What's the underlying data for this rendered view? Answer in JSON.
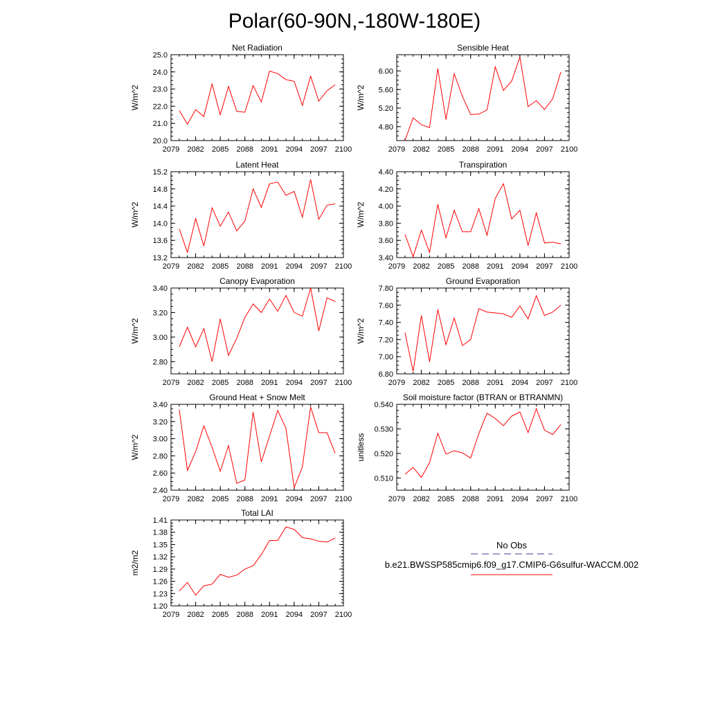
{
  "title": "Polar(60-90N,-180W-180E)",
  "series_color": "#ff0000",
  "obs_color": "#3b3b9e",
  "legend": {
    "obs_label": "No Obs",
    "model_label": "b.e21.BWSSP585cmip6.f09_g17.CMIP6-G6sulfur-WACCM.002"
  },
  "chart_data": [
    {
      "type": "line",
      "title": "Net Radiation",
      "ylabel": "W/m^2",
      "xlim": [
        2079,
        2100
      ],
      "ylim": [
        20.0,
        25.0
      ],
      "xticks": [
        "2079",
        "2082",
        "2085",
        "2088",
        "2091",
        "2094",
        "2097",
        "2100"
      ],
      "yticks": [
        "20.0",
        "21.0",
        "22.0",
        "23.0",
        "24.0",
        "25.0"
      ],
      "x": [
        2080,
        2081,
        2082,
        2083,
        2084,
        2085,
        2086,
        2087,
        2088,
        2089,
        2090,
        2091,
        2092,
        2093,
        2094,
        2095,
        2096,
        2097,
        2098,
        2099
      ],
      "y": [
        21.75,
        20.95,
        21.8,
        21.4,
        23.3,
        21.5,
        23.15,
        21.7,
        21.65,
        23.2,
        22.25,
        24.05,
        23.9,
        23.55,
        23.45,
        22.05,
        23.75,
        22.3,
        22.9,
        23.25
      ]
    },
    {
      "type": "line",
      "title": "Sensible Heat",
      "ylabel": "W/m^2",
      "xlim": [
        2079,
        2100
      ],
      "ylim": [
        4.5,
        6.35
      ],
      "xticks": [
        "2079",
        "2082",
        "2085",
        "2088",
        "2091",
        "2094",
        "2097",
        "2100"
      ],
      "yticks": [
        "4.80",
        "5.20",
        "5.60",
        "6.00"
      ],
      "x": [
        2080,
        2081,
        2082,
        2083,
        2084,
        2085,
        2086,
        2087,
        2088,
        2089,
        2090,
        2091,
        2092,
        2093,
        2094,
        2095,
        2096,
        2097,
        2098,
        2099
      ],
      "y": [
        4.5,
        4.99,
        4.84,
        4.78,
        6.05,
        4.95,
        5.94,
        5.45,
        5.06,
        5.07,
        5.16,
        6.09,
        5.58,
        5.78,
        6.3,
        5.23,
        5.36,
        5.17,
        5.4,
        5.98
      ]
    },
    {
      "type": "line",
      "title": "Latent Heat",
      "ylabel": "W/m^2",
      "xlim": [
        2079,
        2100
      ],
      "ylim": [
        13.2,
        15.2
      ],
      "xticks": [
        "2079",
        "2082",
        "2085",
        "2088",
        "2091",
        "2094",
        "2097",
        "2100"
      ],
      "yticks": [
        "13.2",
        "13.6",
        "14.0",
        "14.4",
        "14.8",
        "15.2"
      ],
      "x": [
        2080,
        2081,
        2082,
        2083,
        2084,
        2085,
        2086,
        2087,
        2088,
        2089,
        2090,
        2091,
        2092,
        2093,
        2094,
        2095,
        2096,
        2097,
        2098,
        2099
      ],
      "y": [
        13.87,
        13.32,
        14.11,
        13.47,
        14.36,
        13.93,
        14.26,
        13.82,
        14.05,
        14.8,
        14.37,
        14.92,
        14.96,
        14.65,
        14.74,
        14.14,
        15.02,
        14.09,
        14.42,
        14.45
      ]
    },
    {
      "type": "line",
      "title": "Transpiration",
      "ylabel": "W/m^2",
      "xlim": [
        2079,
        2100
      ],
      "ylim": [
        3.4,
        4.4
      ],
      "xticks": [
        "2079",
        "2082",
        "2085",
        "2088",
        "2091",
        "2094",
        "2097",
        "2100"
      ],
      "yticks": [
        "3.40",
        "3.60",
        "3.80",
        "4.00",
        "4.20",
        "4.40"
      ],
      "x": [
        2080,
        2081,
        2082,
        2083,
        2084,
        2085,
        2086,
        2087,
        2088,
        2089,
        2090,
        2091,
        2092,
        2093,
        2094,
        2095,
        2096,
        2097,
        2098,
        2099
      ],
      "y": [
        3.67,
        3.41,
        3.72,
        3.46,
        4.02,
        3.63,
        3.95,
        3.7,
        3.7,
        3.97,
        3.66,
        4.09,
        4.26,
        3.85,
        3.95,
        3.54,
        3.92,
        3.57,
        3.58,
        3.56
      ]
    },
    {
      "type": "line",
      "title": "Canopy Evaporation",
      "ylabel": "W/m^2",
      "xlim": [
        2079,
        2100
      ],
      "ylim": [
        2.7,
        3.4
      ],
      "xticks": [
        "2079",
        "2082",
        "2085",
        "2088",
        "2091",
        "2094",
        "2097",
        "2100"
      ],
      "yticks": [
        "2.80",
        "3.00",
        "3.20",
        "3.40"
      ],
      "x": [
        2080,
        2081,
        2082,
        2083,
        2084,
        2085,
        2086,
        2087,
        2088,
        2089,
        2090,
        2091,
        2092,
        2093,
        2094,
        2095,
        2096,
        2097,
        2098,
        2099
      ],
      "y": [
        2.92,
        3.08,
        2.92,
        3.07,
        2.8,
        3.15,
        2.85,
        2.99,
        3.16,
        3.27,
        3.2,
        3.31,
        3.21,
        3.34,
        3.2,
        3.17,
        3.4,
        3.05,
        3.32,
        3.29
      ]
    },
    {
      "type": "line",
      "title": "Ground Evaporation",
      "ylabel": "W/m^2",
      "xlim": [
        2079,
        2100
      ],
      "ylim": [
        6.8,
        7.8
      ],
      "xticks": [
        "2079",
        "2082",
        "2085",
        "2088",
        "2091",
        "2094",
        "2097",
        "2100"
      ],
      "yticks": [
        "6.80",
        "7.00",
        "7.20",
        "7.40",
        "7.60",
        "7.80"
      ],
      "x": [
        2080,
        2081,
        2082,
        2083,
        2084,
        2085,
        2086,
        2087,
        2088,
        2089,
        2090,
        2091,
        2092,
        2093,
        2094,
        2095,
        2096,
        2097,
        2098,
        2099
      ],
      "y": [
        7.28,
        6.83,
        7.48,
        6.94,
        7.55,
        7.14,
        7.45,
        7.13,
        7.2,
        7.56,
        7.52,
        7.51,
        7.5,
        7.46,
        7.59,
        7.44,
        7.71,
        7.48,
        7.52,
        7.6
      ]
    },
    {
      "type": "line",
      "title": "Ground Heat + Snow Melt",
      "ylabel": "W/m^2",
      "xlim": [
        2079,
        2100
      ],
      "ylim": [
        2.4,
        3.4
      ],
      "xticks": [
        "2079",
        "2082",
        "2085",
        "2088",
        "2091",
        "2094",
        "2097",
        "2100"
      ],
      "yticks": [
        "2.40",
        "2.60",
        "2.80",
        "3.00",
        "3.20",
        "3.40"
      ],
      "x": [
        2080,
        2081,
        2082,
        2083,
        2084,
        2085,
        2086,
        2087,
        2088,
        2089,
        2090,
        2091,
        2092,
        2093,
        2094,
        2095,
        2096,
        2097,
        2098,
        2099
      ],
      "y": [
        3.34,
        2.63,
        2.85,
        3.15,
        2.9,
        2.62,
        2.92,
        2.48,
        2.52,
        3.31,
        2.73,
        3.03,
        3.33,
        3.12,
        2.43,
        2.67,
        3.37,
        3.07,
        3.07,
        2.83
      ]
    },
    {
      "type": "line",
      "title": "Soil moisture factor (BTRAN or BTRANMN)",
      "ylabel": "unitless",
      "xlim": [
        2079,
        2100
      ],
      "ylim": [
        0.505,
        0.54
      ],
      "xticks": [
        "2079",
        "2082",
        "2085",
        "2088",
        "2091",
        "2094",
        "2097",
        "2100"
      ],
      "yticks": [
        "0.510",
        "0.520",
        "0.530",
        "0.540"
      ],
      "x": [
        2080,
        2081,
        2082,
        2083,
        2084,
        2085,
        2086,
        2087,
        2088,
        2089,
        2090,
        2091,
        2092,
        2093,
        2094,
        2095,
        2096,
        2097,
        2098,
        2099
      ],
      "y": [
        0.5115,
        0.5143,
        0.5102,
        0.5162,
        0.5282,
        0.5197,
        0.5211,
        0.5202,
        0.5181,
        0.5281,
        0.5364,
        0.5342,
        0.5313,
        0.5352,
        0.5369,
        0.5285,
        0.5382,
        0.5295,
        0.5277,
        0.5318
      ]
    },
    {
      "type": "line",
      "title": "Total LAI",
      "ylabel": "m2/m2",
      "xlim": [
        2079,
        2100
      ],
      "ylim": [
        1.2,
        1.41
      ],
      "xticks": [
        "2079",
        "2082",
        "2085",
        "2088",
        "2091",
        "2094",
        "2097",
        "2100"
      ],
      "yticks": [
        "1.20",
        "1.23",
        "1.26",
        "1.29",
        "1.32",
        "1.35",
        "1.38",
        "1.41"
      ],
      "x": [
        2080,
        2081,
        2082,
        2083,
        2084,
        2085,
        2086,
        2087,
        2088,
        2089,
        2090,
        2091,
        2092,
        2093,
        2094,
        2095,
        2096,
        2097,
        2098,
        2099
      ],
      "y": [
        1.236,
        1.257,
        1.226,
        1.249,
        1.253,
        1.277,
        1.27,
        1.275,
        1.29,
        1.298,
        1.325,
        1.36,
        1.36,
        1.393,
        1.387,
        1.367,
        1.364,
        1.358,
        1.356,
        1.366
      ]
    }
  ]
}
